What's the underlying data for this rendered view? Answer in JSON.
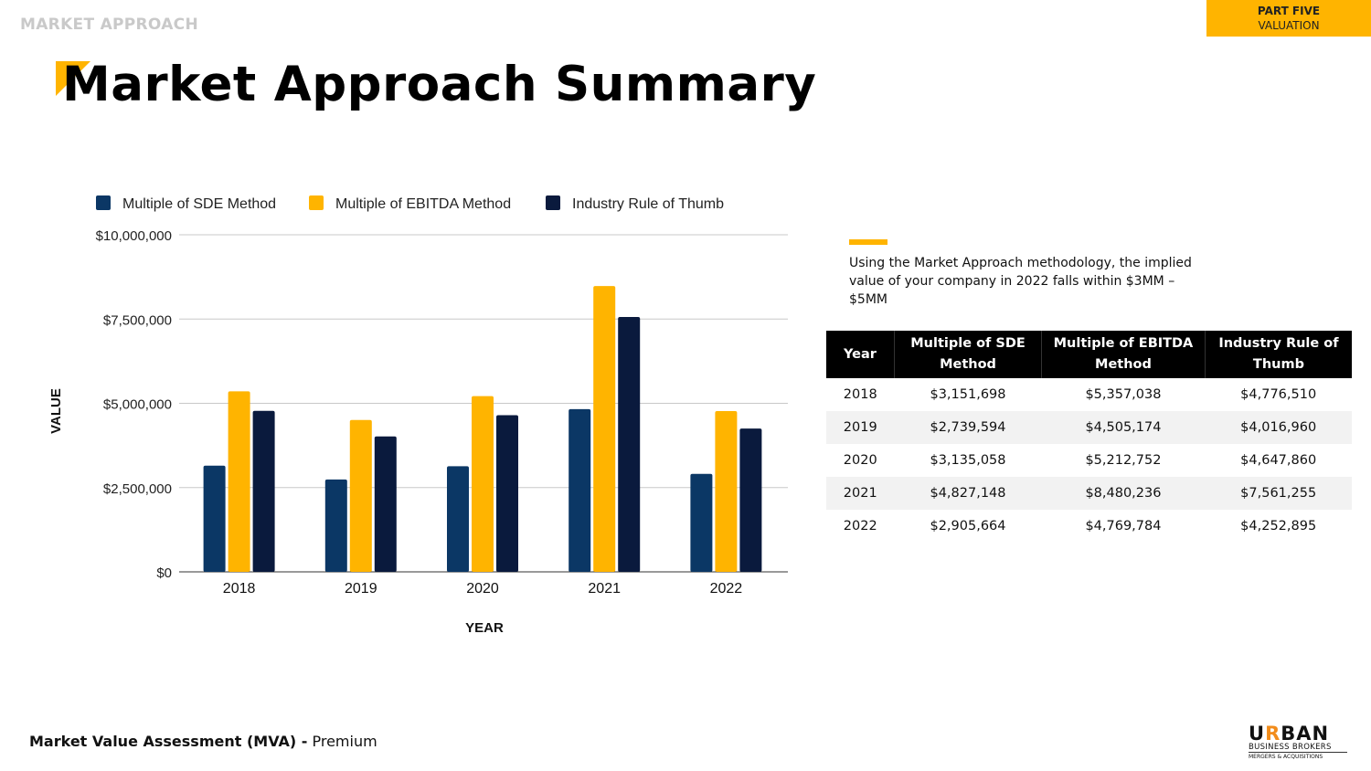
{
  "header": {
    "section": "MARKET APPROACH",
    "part_label": "PART FIVE",
    "part_sub": "VALUATION",
    "title": "Market Approach Summary"
  },
  "colors": {
    "accent": "#ffb400",
    "sde": "#0b3765",
    "ebitda": "#ffb400",
    "rule": "#0a1a3d"
  },
  "chart_data": {
    "type": "bar",
    "categories": [
      "2018",
      "2019",
      "2020",
      "2021",
      "2022"
    ],
    "series": [
      {
        "name": "Multiple of SDE Method",
        "color": "#0b3765",
        "values": [
          3151698,
          2739594,
          3135058,
          4827148,
          2905664
        ]
      },
      {
        "name": "Multiple of EBITDA Method",
        "color": "#ffb400",
        "values": [
          5357038,
          4505174,
          5212752,
          8480236,
          4769784
        ]
      },
      {
        "name": "Industry Rule of Thumb",
        "color": "#0a1a3d",
        "values": [
          4776510,
          4016960,
          4647860,
          7561255,
          4252895
        ]
      }
    ],
    "yticks": [
      "$0",
      "$2,500,000",
      "$5,000,000",
      "$7,500,000",
      "$10,000,000"
    ],
    "ylim": [
      0,
      10000000
    ],
    "xlabel": "YEAR",
    "ylabel": "VALUE",
    "grid": true,
    "legend": "top"
  },
  "note": "Using the Market Approach methodology, the implied value of your company in 2022 falls within $3MM – $5MM",
  "table": {
    "headers": [
      "Year",
      "Multiple of SDE Method",
      "Multiple of EBITDA Method",
      "Industry Rule of Thumb"
    ],
    "rows": [
      [
        "2018",
        "$3,151,698",
        "$5,357,038",
        "$4,776,510"
      ],
      [
        "2019",
        "$2,739,594",
        "$4,505,174",
        "$4,016,960"
      ],
      [
        "2020",
        "$3,135,058",
        "$5,212,752",
        "$4,647,860"
      ],
      [
        "2021",
        "$4,827,148",
        "$8,480,236",
        "$7,561,255"
      ],
      [
        "2022",
        "$2,905,664",
        "$4,769,784",
        "$4,252,895"
      ]
    ]
  },
  "footer": {
    "bold": "Market Value Assessment (MVA) -",
    "plain": " Premium"
  },
  "logo": {
    "word": "URBAN",
    "line1": "BUSINESS BROKERS",
    "line2": "MERGERS & ACQUISITIONS"
  }
}
